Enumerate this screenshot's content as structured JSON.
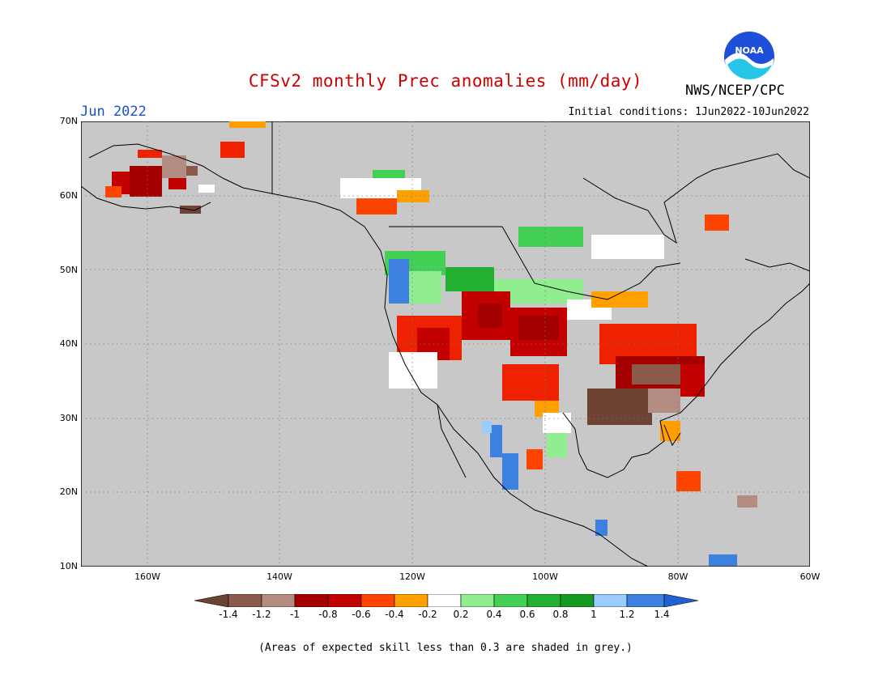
{
  "title": "CFSv2 monthly Prec anomalies (mm/day)",
  "month": "Jun 2022",
  "org": "NWS/NCEP/CPC",
  "logo_text": "NOAA",
  "initial_conditions": "Initial conditions: 1Jun2022-10Jun2022",
  "note": "(Areas of expected skill less than 0.3 are shaded in grey.)",
  "lat_labels": [
    "70N",
    "60N",
    "50N",
    "40N",
    "30N",
    "20N",
    "10N"
  ],
  "lon_labels": [
    "160W",
    "140W",
    "120W",
    "100W",
    "80W",
    "60W"
  ],
  "colorbar": {
    "labels": [
      "-1.4",
      "-1.2",
      "-1",
      "-0.8",
      "-0.6",
      "-0.4",
      "-0.2",
      "0.2",
      "0.4",
      "0.6",
      "0.8",
      "1",
      "1.2",
      "1.4"
    ],
    "colors": [
      "#6e4334",
      "#8b5a4b",
      "#b38c82",
      "#a50000",
      "#c20000",
      "#ee2200",
      "#ff4400",
      "#ffa000",
      "#ffffff",
      "#90ee90",
      "#44d055",
      "#22b030",
      "#139a20",
      "#99ccff",
      "#3c80e0",
      "#2060d0"
    ]
  },
  "colors": {
    "title": "#cc0000",
    "month": "#1a50d0",
    "grey_area": "#c8c8c8"
  }
}
